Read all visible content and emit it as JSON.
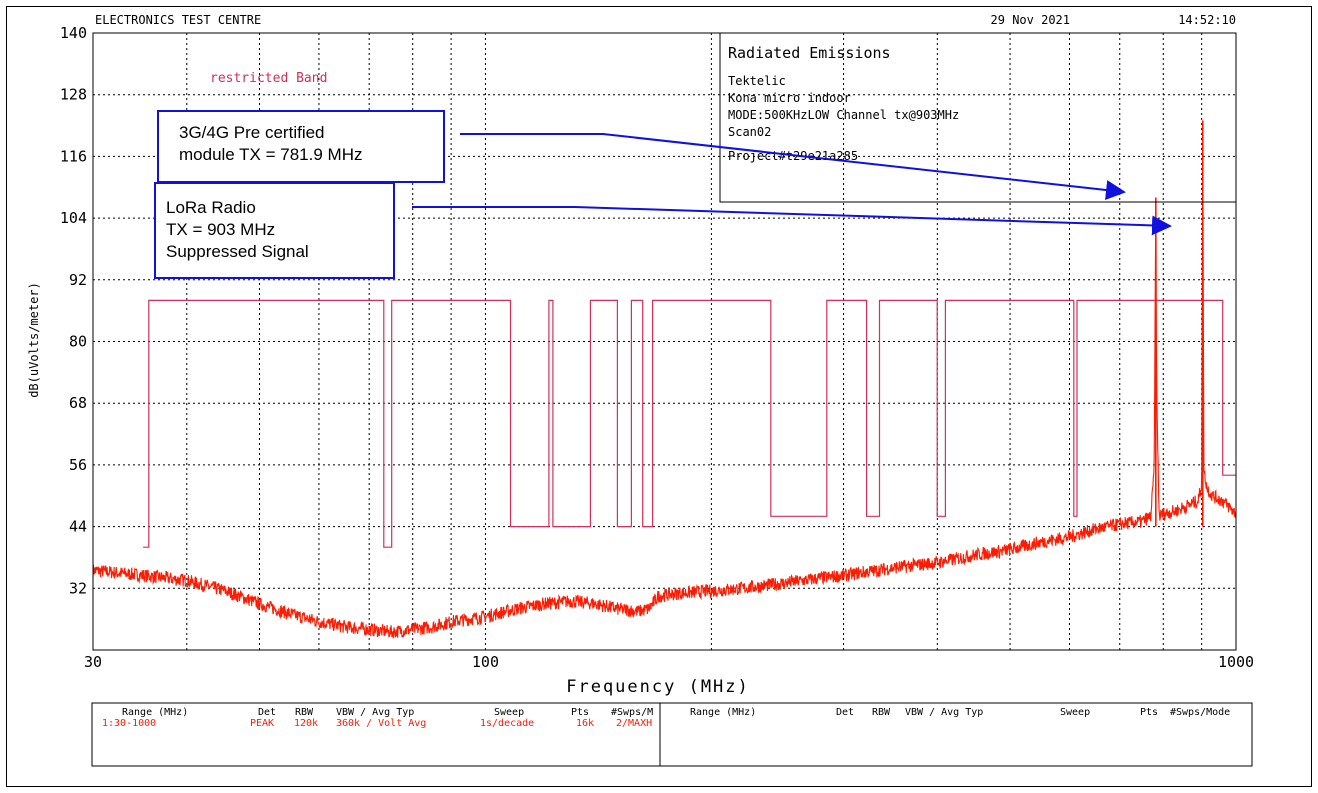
{
  "header": {
    "lab": "ELECTRONICS TEST CENTRE",
    "date": "29 Nov 2021",
    "time": "14:52:10"
  },
  "info_box": {
    "title": "Radiated Emissions",
    "lines": [
      "Tektelic",
      "Kona micro indoor",
      "MODE:500KHzLOW Channel tx@903MHz",
      "Scan02",
      "Project#t29e21a285"
    ]
  },
  "callouts": {
    "a": {
      "lines": [
        "3G/4G Pre certified",
        "module TX = 781.9 MHz"
      ]
    },
    "b": {
      "lines": [
        "LoRa Radio",
        "TX = 903 MHz",
        "Suppressed Signal"
      ]
    }
  },
  "restricted_label": "restricted Band",
  "table": {
    "headers": [
      "Range (MHz)",
      "Det",
      "RBW",
      "VBW / Avg Typ",
      "Sweep",
      "Pts",
      "#Swps/M"
    ],
    "row": [
      "1:30-1000",
      "PEAK",
      "120k",
      "360k / Volt Avg",
      "1s/decade",
      "16k",
      "2/MAXH"
    ],
    "headers2": [
      "Range (MHz)",
      "Det",
      "RBW",
      "VBW / Avg Typ",
      "Sweep",
      "Pts",
      "#Swps/Mode"
    ]
  },
  "colors": {
    "trace": "#ff1a00",
    "limit": "#d0305a",
    "callout_border": "#1010e0",
    "arrow": "#1010e0"
  },
  "chart_data": {
    "type": "line",
    "title": "",
    "xlabel": "Frequency (MHz)",
    "ylabel": "dB(uVolts/meter)",
    "x_scale": "log",
    "xlim": [
      30,
      1000
    ],
    "ylim": [
      20,
      140
    ],
    "xticks": [
      30,
      100,
      1000
    ],
    "xtick_labels": [
      "30",
      "100",
      "1000"
    ],
    "yticks": [
      32,
      44,
      56,
      68,
      80,
      92,
      104,
      116,
      128,
      140
    ],
    "grid": true,
    "series": [
      {
        "kind": "emission",
        "x": [
          30,
          35,
          40,
          45,
          50,
          55,
          60,
          65,
          70,
          75,
          80,
          85,
          90,
          100,
          110,
          120,
          130,
          140,
          150,
          160,
          165,
          170,
          180,
          200,
          220,
          250,
          280,
          300,
          350,
          400,
          450,
          500,
          550,
          600,
          650,
          700,
          750,
          770,
          778,
          781.9,
          784,
          790,
          800,
          830,
          860,
          890,
          900,
          903,
          906,
          915,
          930,
          960,
          1000
        ],
        "y": [
          35.5,
          34.5,
          33.5,
          31.5,
          29.0,
          27.0,
          25.5,
          24.5,
          24.0,
          23.5,
          24.0,
          24.5,
          25.5,
          26.5,
          28.0,
          29.0,
          29.5,
          29.0,
          28.0,
          27.5,
          28.0,
          30.5,
          31.0,
          31.5,
          32.0,
          33.0,
          34.0,
          34.5,
          36.0,
          37.0,
          38.5,
          39.5,
          41.0,
          42.0,
          43.5,
          44.5,
          45.0,
          46.0,
          55.0,
          108.0,
          70.0,
          46.0,
          46.5,
          47.0,
          48.0,
          49.0,
          52.0,
          123.0,
          55.0,
          51.5,
          50.0,
          49.0,
          46.5
        ]
      },
      {
        "kind": "limit",
        "segments": [
          {
            "x": [
              35.0,
              35.6
            ],
            "y": 40
          },
          {
            "x": [
              35.6,
              73.2
            ],
            "y": 88
          },
          {
            "x": [
              73.2,
              75.0
            ],
            "y": 40
          },
          {
            "x": [
              75.0,
              108.0
            ],
            "y": 88
          },
          {
            "x": [
              108.0,
              121.5
            ],
            "y": 44
          },
          {
            "x": [
              121.5,
              123.0
            ],
            "y": 88
          },
          {
            "x": [
              123.0,
              138.0
            ],
            "y": 44
          },
          {
            "x": [
              138.0,
              149.9
            ],
            "y": 88
          },
          {
            "x": [
              149.9,
              156.5
            ],
            "y": 44
          },
          {
            "x": [
              156.5,
              162.0
            ],
            "y": 88
          },
          {
            "x": [
              162.0,
              167.0
            ],
            "y": 44
          },
          {
            "x": [
              167.0,
              240.0
            ],
            "y": 88
          },
          {
            "x": [
              240.0,
              285.0
            ],
            "y": 46
          },
          {
            "x": [
              285.0,
              322.0
            ],
            "y": 88
          },
          {
            "x": [
              322.0,
              335.0
            ],
            "y": 46
          },
          {
            "x": [
              335.0,
              399.9
            ],
            "y": 88
          },
          {
            "x": [
              399.9,
              410.0
            ],
            "y": 46
          },
          {
            "x": [
              410.0,
              608.0
            ],
            "y": 88
          },
          {
            "x": [
              608.0,
              614.0
            ],
            "y": 46
          },
          {
            "x": [
              614.0,
              960.0
            ],
            "y": 88
          },
          {
            "x": [
              960.0,
              1000.0
            ],
            "y": 54
          }
        ]
      }
    ]
  }
}
